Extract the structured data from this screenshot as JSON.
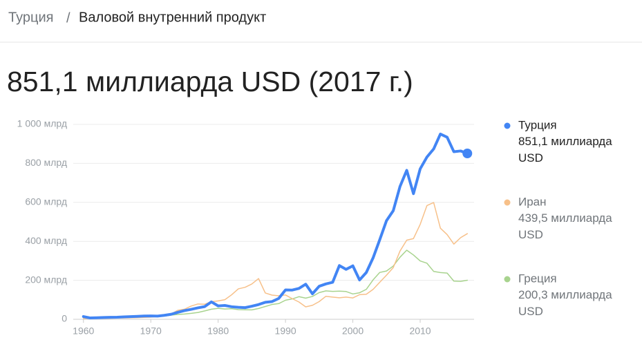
{
  "breadcrumb": {
    "parent": "Турция",
    "separator": "/",
    "current": "Валовой внутренний продукт"
  },
  "headline": "851,1 миллиарда USD (2017 г.)",
  "chart_data": {
    "type": "line",
    "x": [
      1960,
      1961,
      1962,
      1963,
      1964,
      1965,
      1966,
      1967,
      1968,
      1969,
      1970,
      1971,
      1972,
      1973,
      1974,
      1975,
      1976,
      1977,
      1978,
      1979,
      1980,
      1981,
      1982,
      1983,
      1984,
      1985,
      1986,
      1987,
      1988,
      1989,
      1990,
      1991,
      1992,
      1993,
      1994,
      1995,
      1996,
      1997,
      1998,
      1999,
      2000,
      2001,
      2002,
      2003,
      2004,
      2005,
      2006,
      2007,
      2008,
      2009,
      2010,
      2011,
      2012,
      2013,
      2014,
      2015,
      2016,
      2017
    ],
    "series": [
      {
        "name": "Турция",
        "color": "#4285f4",
        "value_label": "851,1 миллиарда USD",
        "values": [
          14,
          7,
          8,
          9.2,
          10,
          10.6,
          12.3,
          13.7,
          15.2,
          17,
          17.1,
          16.4,
          20.4,
          25.7,
          35.6,
          44.6,
          51.3,
          58.7,
          65.1,
          89.4,
          68.8,
          71,
          64.5,
          61.7,
          59.9,
          67.2,
          75.7,
          87.2,
          90.9,
          107.1,
          150.7,
          150,
          158.5,
          180.2,
          130.7,
          169.5,
          181.5,
          189.8,
          275.9,
          256.4,
          274.3,
          201.8,
          240.3,
          314.6,
          408.9,
          506.3,
          557.1,
          681.3,
          764.3,
          644.6,
          771.9,
          832.5,
          874,
          950.6,
          934.2,
          859.8,
          863.7,
          851.1
        ]
      },
      {
        "name": "Иран",
        "color": "#f7c089",
        "value_label": "439,5 миллиарда USD",
        "values": [
          4.2,
          4.4,
          4.7,
          4.9,
          5.4,
          6.2,
          6.7,
          7.5,
          8.6,
          9.6,
          10.9,
          13.7,
          17,
          27.1,
          46.2,
          51.8,
          68.1,
          78.6,
          77.1,
          90.4,
          94.4,
          100.5,
          125.6,
          156.2,
          164.2,
          181.2,
          209.1,
          134.9,
          124.1,
          120.6,
          124.8,
          106,
          88.6,
          63.7,
          71.8,
          90.8,
          118.1,
          113.9,
          110.3,
          113.8,
          109.6,
          126.3,
          128.6,
          153.5,
          190,
          226.5,
          265.1,
          349.9,
          406.1,
          414.1,
          487.1,
          583.5,
          598.9,
          467.4,
          434.5,
          385.9,
          418.9,
          439.5
        ]
      },
      {
        "name": "Греция",
        "color": "#a8d38e",
        "value_label": "200,3 миллиарда USD",
        "values": [
          4.4,
          5,
          5.3,
          5.9,
          6.7,
          7.6,
          8.5,
          9.1,
          9.8,
          11.2,
          13.1,
          14.4,
          16.4,
          21.3,
          24.7,
          27.2,
          30.7,
          35.1,
          43.1,
          51.9,
          56.4,
          52.6,
          54.6,
          49.5,
          48.8,
          48.4,
          55.5,
          65.7,
          76.1,
          80.5,
          97.9,
          104.5,
          116,
          108.6,
          117.3,
          136.9,
          145.9,
          143.2,
          144.4,
          142.6,
          130.1,
          136.2,
          153.8,
          201.9,
          240.5,
          247.8,
          273.3,
          318.5,
          354.5,
          330,
          299.4,
          287.8,
          245.7,
          239.9,
          237,
          196,
          194.6,
          200.3
        ]
      }
    ],
    "xlim": [
      1959,
      2018
    ],
    "xticks": [
      1960,
      1970,
      1980,
      1990,
      2000,
      2010
    ],
    "ylim": [
      0,
      1000
    ],
    "yticks": [
      0,
      {
        "value": 200,
        "label": "200 млрд"
      },
      {
        "value": 400,
        "label": "400 млрд"
      },
      {
        "value": 600,
        "label": "600 млрд"
      },
      {
        "value": 800,
        "label": "800 млрд"
      },
      {
        "value": 1000,
        "label": "1 000 млрд"
      }
    ],
    "grid": true
  }
}
